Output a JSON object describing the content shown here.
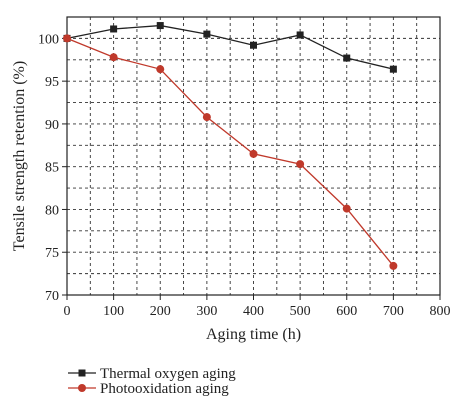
{
  "chart_data": {
    "type": "line",
    "xlabel": "Aging time (h)",
    "ylabel": "Tensile strength retention (%)",
    "xlim": [
      0,
      800
    ],
    "ylim": [
      70,
      102.5
    ],
    "xticks": [
      0,
      100,
      200,
      300,
      400,
      500,
      600,
      700,
      800
    ],
    "yticks": [
      70,
      75,
      80,
      85,
      90,
      95,
      100
    ],
    "grid": "dashed",
    "legend_position": "bottom-left, below plot",
    "series": [
      {
        "name": "Thermal oxygen aging",
        "color": "#222222",
        "marker": "square",
        "x": [
          0,
          100,
          200,
          300,
          400,
          500,
          600,
          700
        ],
        "y": [
          100.0,
          101.1,
          101.5,
          100.5,
          99.2,
          100.4,
          97.7,
          96.4
        ]
      },
      {
        "name": "Photooxidation aging",
        "color": "#c0392b",
        "marker": "circle",
        "x": [
          0,
          100,
          200,
          300,
          400,
          500,
          600,
          700
        ],
        "y": [
          100.0,
          97.8,
          96.4,
          90.8,
          86.5,
          85.3,
          80.1,
          73.4
        ]
      }
    ]
  }
}
